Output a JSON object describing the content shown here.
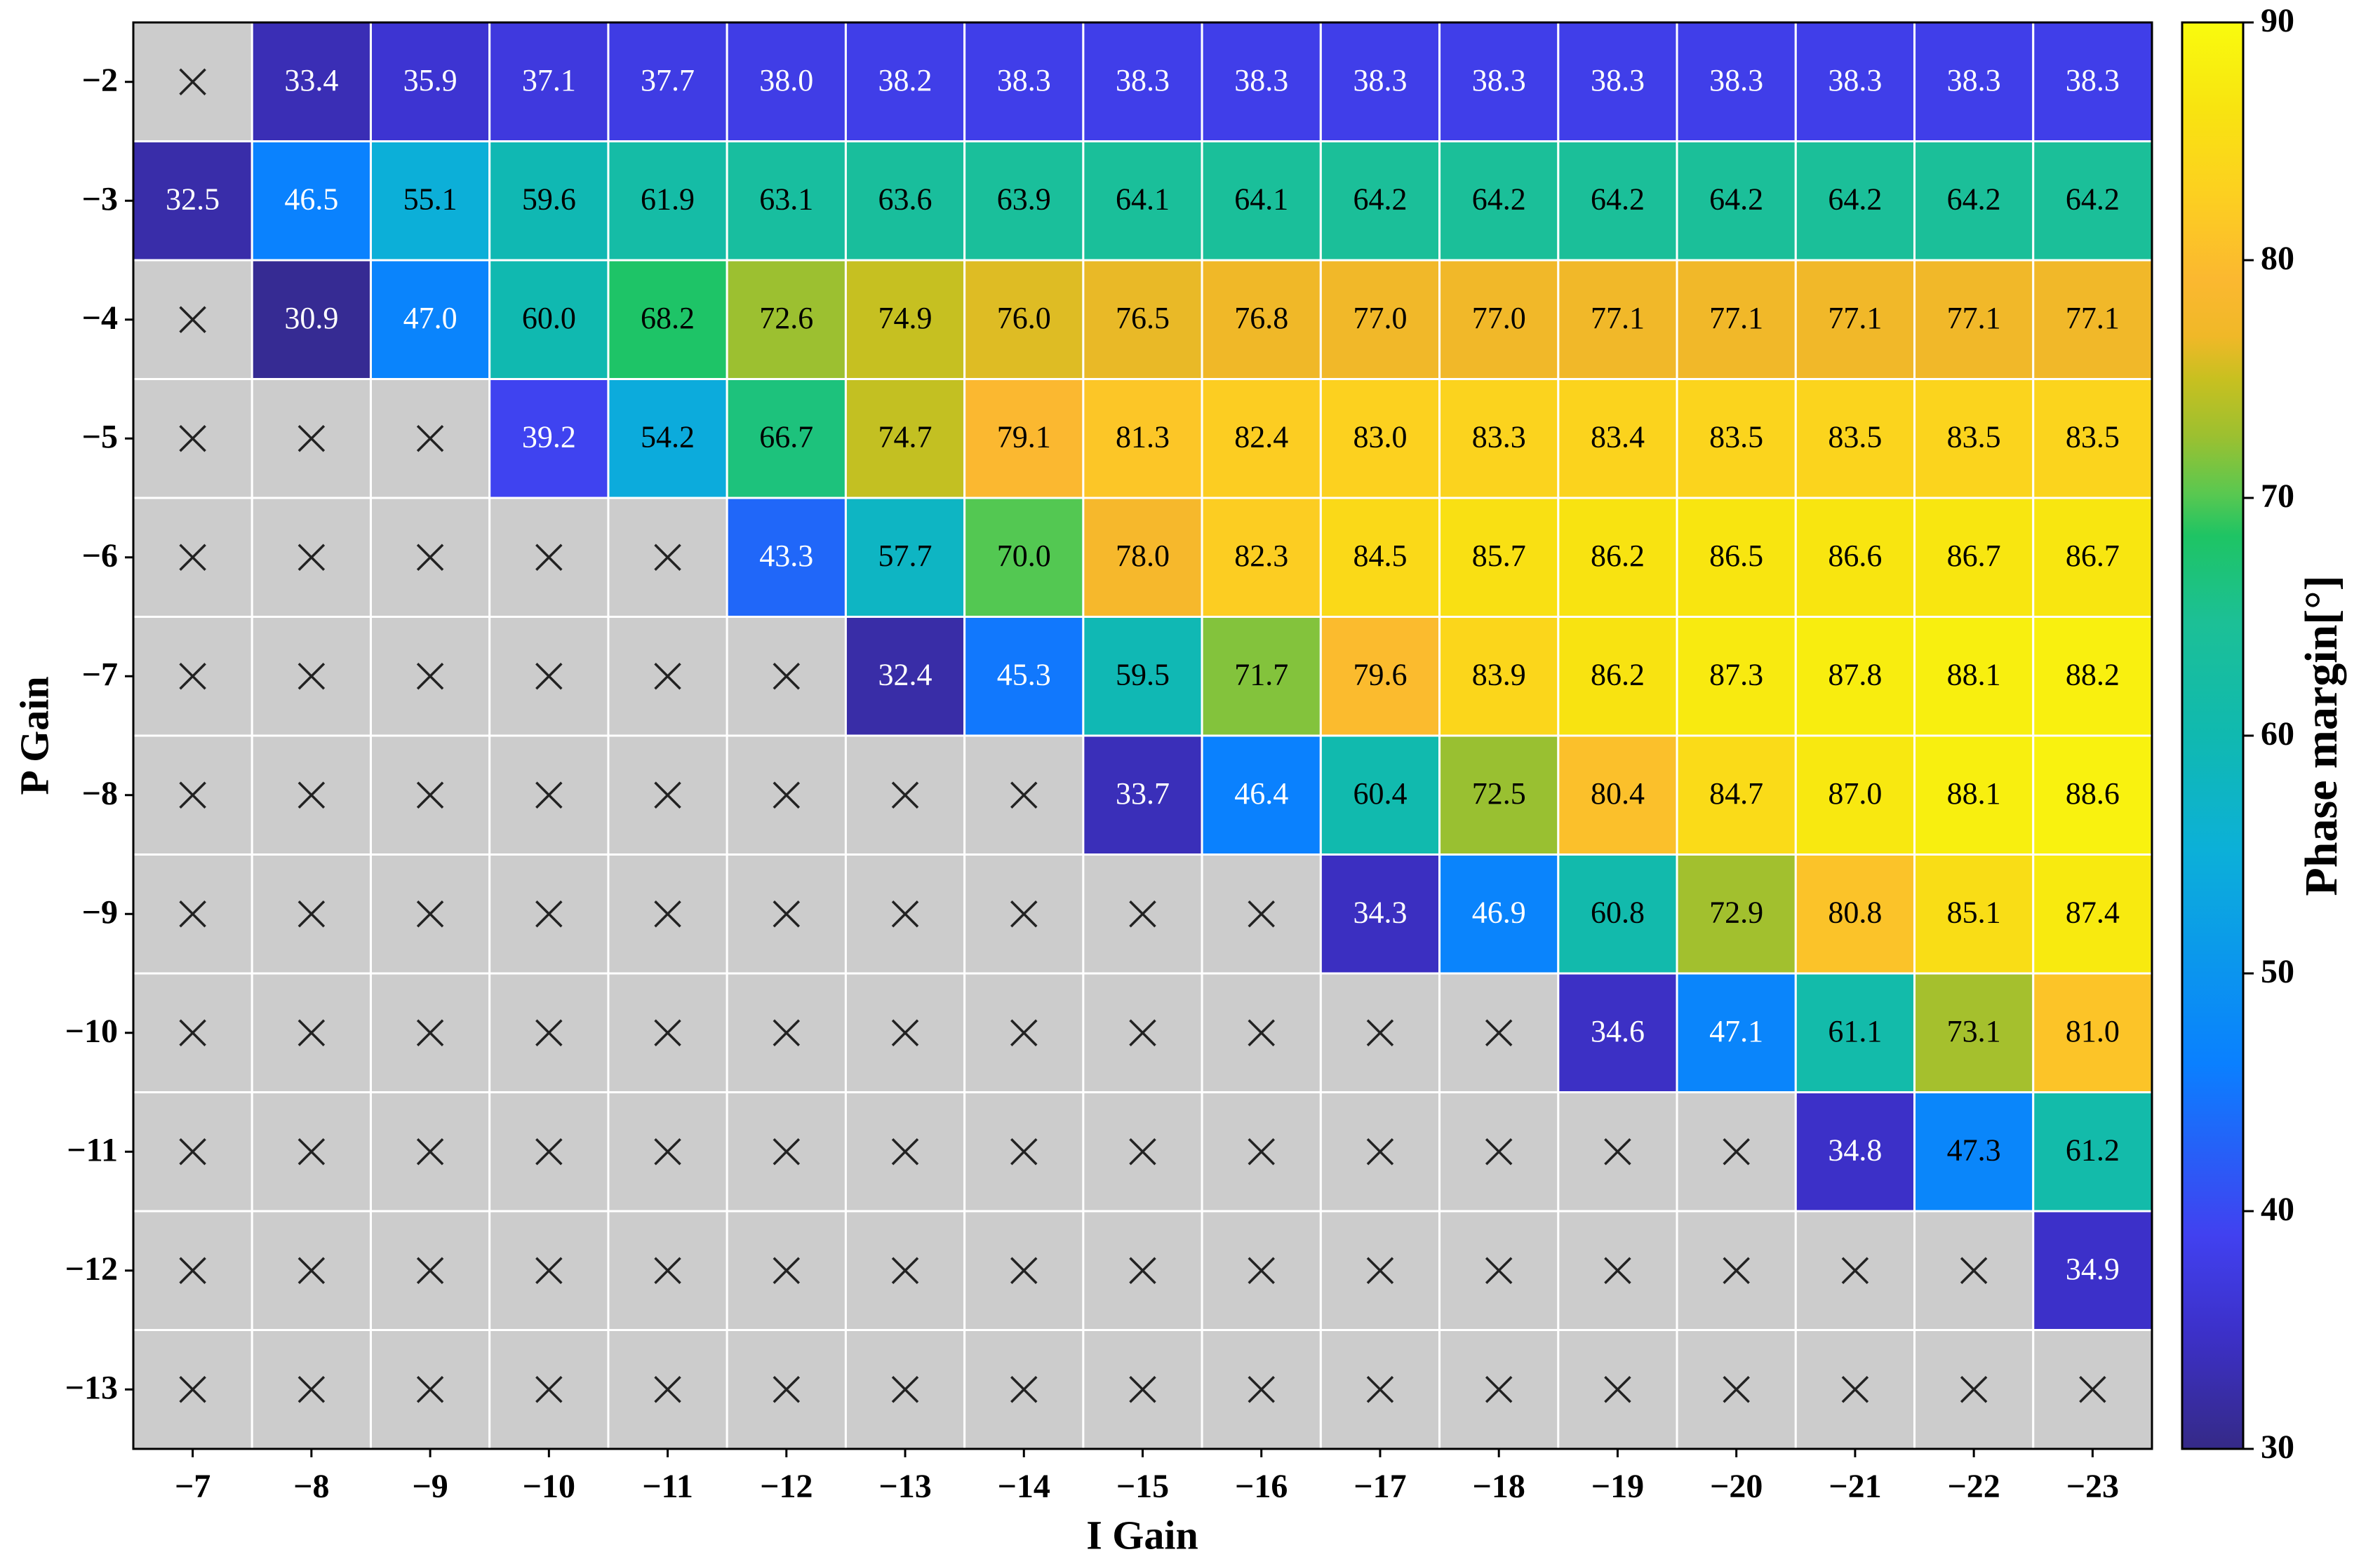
{
  "chart_data": {
    "type": "heatmap",
    "xlabel": "I Gain",
    "ylabel": "P Gain",
    "colorbar_label": "Phase margin[°]",
    "x_categories": [
      "−7",
      "−8",
      "−9",
      "−10",
      "−11",
      "−12",
      "−13",
      "−14",
      "−15",
      "−16",
      "−17",
      "−18",
      "−19",
      "−20",
      "−21",
      "−22",
      "−23"
    ],
    "y_categories": [
      "−2",
      "−3",
      "−4",
      "−5",
      "−6",
      "−7",
      "−8",
      "−9",
      "−10",
      "−11",
      "−12",
      "−13"
    ],
    "values": [
      [
        null,
        33.4,
        35.9,
        37.1,
        37.7,
        38.0,
        38.2,
        38.3,
        38.3,
        38.3,
        38.3,
        38.3,
        38.3,
        38.3,
        38.3,
        38.3,
        38.3
      ],
      [
        32.5,
        46.5,
        55.1,
        59.6,
        61.9,
        63.1,
        63.6,
        63.9,
        64.1,
        64.1,
        64.2,
        64.2,
        64.2,
        64.2,
        64.2,
        64.2,
        64.2
      ],
      [
        null,
        30.9,
        47.0,
        60.0,
        68.2,
        72.6,
        74.9,
        76.0,
        76.5,
        76.8,
        77.0,
        77.0,
        77.1,
        77.1,
        77.1,
        77.1,
        77.1
      ],
      [
        null,
        null,
        null,
        39.2,
        54.2,
        66.7,
        74.7,
        79.1,
        81.3,
        82.4,
        83.0,
        83.3,
        83.4,
        83.5,
        83.5,
        83.5,
        83.5
      ],
      [
        null,
        null,
        null,
        null,
        null,
        43.3,
        57.7,
        70.0,
        78.0,
        82.3,
        84.5,
        85.7,
        86.2,
        86.5,
        86.6,
        86.7,
        86.7
      ],
      [
        null,
        null,
        null,
        null,
        null,
        null,
        32.4,
        45.3,
        59.5,
        71.7,
        79.6,
        83.9,
        86.2,
        87.3,
        87.8,
        88.1,
        88.2
      ],
      [
        null,
        null,
        null,
        null,
        null,
        null,
        null,
        null,
        33.7,
        46.4,
        60.4,
        72.5,
        80.4,
        84.7,
        87.0,
        88.1,
        88.6
      ],
      [
        null,
        null,
        null,
        null,
        null,
        null,
        null,
        null,
        null,
        null,
        34.3,
        46.9,
        60.8,
        72.9,
        80.8,
        85.1,
        87.4
      ],
      [
        null,
        null,
        null,
        null,
        null,
        null,
        null,
        null,
        null,
        null,
        null,
        null,
        34.6,
        47.1,
        61.1,
        73.1,
        81.0
      ],
      [
        null,
        null,
        null,
        null,
        null,
        null,
        null,
        null,
        null,
        null,
        null,
        null,
        null,
        null,
        34.8,
        47.3,
        61.2
      ],
      [
        null,
        null,
        null,
        null,
        null,
        null,
        null,
        null,
        null,
        null,
        null,
        null,
        null,
        null,
        null,
        null,
        34.9
      ],
      [
        null,
        null,
        null,
        null,
        null,
        null,
        null,
        null,
        null,
        null,
        null,
        null,
        null,
        null,
        null,
        null,
        null
      ]
    ],
    "value_labels": [
      [
        null,
        "33.4",
        "35.9",
        "37.1",
        "37.7",
        "38.0",
        "38.2",
        "38.3",
        "38.3",
        "38.3",
        "38.3",
        "38.3",
        "38.3",
        "38.3",
        "38.3",
        "38.3",
        "38.3"
      ],
      [
        "32.5",
        "46.5",
        "55.1",
        "59.6",
        "61.9",
        "63.1",
        "63.6",
        "63.9",
        "64.1",
        "64.1",
        "64.2",
        "64.2",
        "64.2",
        "64.2",
        "64.2",
        "64.2",
        "64.2"
      ],
      [
        null,
        "30.9",
        "47.0",
        "60.0",
        "68.2",
        "72.6",
        "74.9",
        "76.0",
        "76.5",
        "76.8",
        "77.0",
        "77.0",
        "77.1",
        "77.1",
        "77.1",
        "77.1",
        "77.1"
      ],
      [
        null,
        null,
        null,
        "39.2",
        "54.2",
        "66.7",
        "74.7",
        "79.1",
        "81.3",
        "82.4",
        "83.0",
        "83.3",
        "83.4",
        "83.5",
        "83.5",
        "83.5",
        "83.5"
      ],
      [
        null,
        null,
        null,
        null,
        null,
        "43.3",
        "57.7",
        "70.0",
        "78.0",
        "82.3",
        "84.5",
        "85.7",
        "86.2",
        "86.5",
        "86.6",
        "86.7",
        "86.7"
      ],
      [
        null,
        null,
        null,
        null,
        null,
        null,
        "32.4",
        "45.3",
        "59.5",
        "71.7",
        "79.6",
        "83.9",
        "86.2",
        "87.3",
        "87.8",
        "88.1",
        "88.2"
      ],
      [
        null,
        null,
        null,
        null,
        null,
        null,
        null,
        null,
        "33.7",
        "46.4",
        "60.4",
        "72.5",
        "80.4",
        "84.7",
        "87.0",
        "88.1",
        "88.6"
      ],
      [
        null,
        null,
        null,
        null,
        null,
        null,
        null,
        null,
        null,
        null,
        "34.3",
        "46.9",
        "60.8",
        "72.9",
        "80.8",
        "85.1",
        "87.4"
      ],
      [
        null,
        null,
        null,
        null,
        null,
        null,
        null,
        null,
        null,
        null,
        null,
        null,
        "34.6",
        "47.1",
        "61.1",
        "73.1",
        "81.0"
      ],
      [
        null,
        null,
        null,
        null,
        null,
        null,
        null,
        null,
        null,
        null,
        null,
        null,
        null,
        null,
        "34.8",
        "47.3",
        "61.2"
      ],
      [
        null,
        null,
        null,
        null,
        null,
        null,
        null,
        null,
        null,
        null,
        null,
        null,
        null,
        null,
        null,
        null,
        "34.9"
      ],
      [
        null,
        null,
        null,
        null,
        null,
        null,
        null,
        null,
        null,
        null,
        null,
        null,
        null,
        null,
        null,
        null,
        null
      ]
    ],
    "clim": [
      30,
      90
    ],
    "cticks": [
      30,
      40,
      50,
      60,
      70,
      80,
      90
    ],
    "colormap": "parula"
  }
}
